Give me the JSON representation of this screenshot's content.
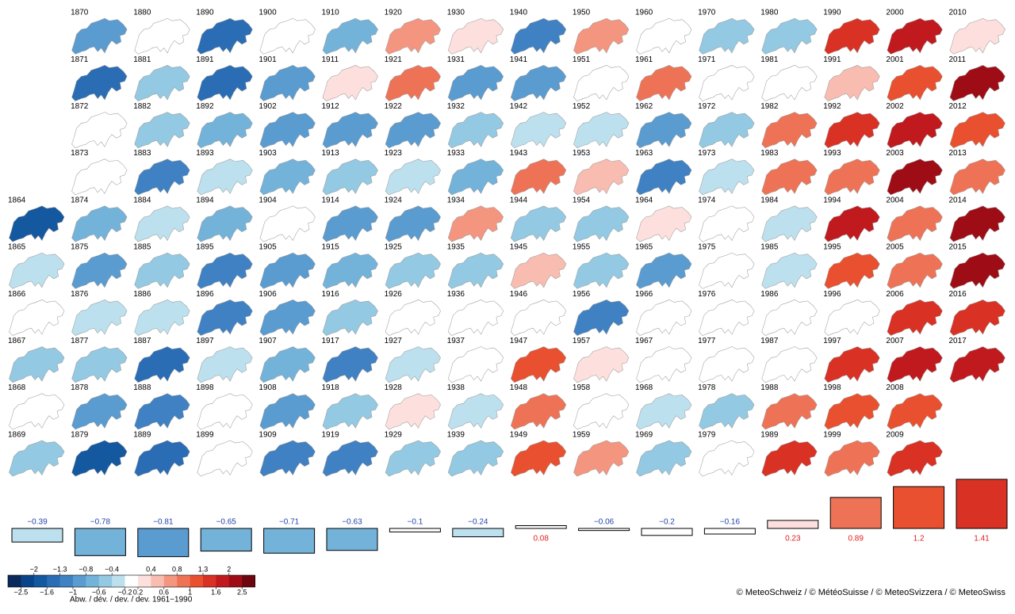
{
  "decades": [
    {
      "years": [
        "1864",
        "1865",
        "1866",
        "1867",
        "1868",
        "1869"
      ],
      "anomalies": [
        -1.8,
        -0.3,
        -0.1,
        -0.6,
        0.1,
        -0.5
      ],
      "mean": -0.39,
      "mean_label": "−0.39"
    },
    {
      "years": [
        "1870",
        "1871",
        "1872",
        "1873",
        "1874",
        "1875",
        "1876",
        "1877",
        "1878",
        "1879"
      ],
      "anomalies": [
        -1.0,
        -1.5,
        -0.1,
        -0.2,
        -0.7,
        -0.9,
        -0.4,
        -0.6,
        -1.0,
        -2.0
      ],
      "mean": -0.78,
      "mean_label": "−0.78"
    },
    {
      "years": [
        "1880",
        "1881",
        "1882",
        "1883",
        "1884",
        "1885",
        "1886",
        "1887",
        "1888",
        "1889"
      ],
      "anomalies": [
        -0.1,
        -0.5,
        -0.6,
        -1.1,
        -0.4,
        -0.6,
        -0.4,
        -1.5,
        -1.3,
        -1.4
      ],
      "mean": -0.81,
      "mean_label": "−0.81"
    },
    {
      "years": [
        "1890",
        "1891",
        "1892",
        "1893",
        "1894",
        "1895",
        "1896",
        "1897",
        "1898",
        "1899"
      ],
      "anomalies": [
        -1.6,
        -1.4,
        -0.8,
        -0.3,
        -0.7,
        -1.1,
        -1.3,
        -0.3,
        0.1,
        -0.1
      ],
      "mean": -0.65,
      "mean_label": "−0.65"
    },
    {
      "years": [
        "1900",
        "1901",
        "1902",
        "1903",
        "1904",
        "1905",
        "1906",
        "1907",
        "1908",
        "1909"
      ],
      "anomalies": [
        -0.1,
        -1.0,
        -1.0,
        -0.8,
        -0.2,
        -1.0,
        -0.9,
        -0.8,
        -0.9,
        -1.2
      ],
      "mean": -0.71,
      "mean_label": "−0.71"
    },
    {
      "years": [
        "1910",
        "1911",
        "1912",
        "1913",
        "1914",
        "1915",
        "1916",
        "1917",
        "1918",
        "1919"
      ],
      "anomalies": [
        -0.8,
        0.2,
        -0.9,
        -0.6,
        -0.9,
        -0.8,
        -0.5,
        -1.3,
        -0.5,
        -1.1
      ],
      "mean": -0.63,
      "mean_label": "−0.63"
    },
    {
      "years": [
        "1920",
        "1921",
        "1922",
        "1923",
        "1924",
        "1925",
        "1926",
        "1927",
        "1928",
        "1929"
      ],
      "anomalies": [
        0.6,
        0.9,
        -1.0,
        -0.3,
        -1.0,
        -0.6,
        -0.1,
        -0.3,
        0.3,
        -0.6
      ],
      "mean": -0.1,
      "mean_label": "−0.1"
    },
    {
      "years": [
        "1930",
        "1931",
        "1932",
        "1933",
        "1934",
        "1935",
        "1936",
        "1937",
        "1938",
        "1939"
      ],
      "anomalies": [
        0.3,
        -0.9,
        -0.6,
        -0.8,
        0.7,
        -0.6,
        -0.1,
        -0.1,
        -0.3,
        -0.6
      ],
      "mean": -0.24,
      "mean_label": "−0.24"
    },
    {
      "years": [
        "1940",
        "1941",
        "1942",
        "1943",
        "1944",
        "1945",
        "1946",
        "1947",
        "1948",
        "1949"
      ],
      "anomalies": [
        -1.2,
        -1.0,
        -0.3,
        0.8,
        -0.6,
        0.4,
        0.1,
        1.2,
        0.9,
        1.0
      ],
      "mean": 0.08
    },
    {
      "years": [
        "1950",
        "1951",
        "1952",
        "1953",
        "1954",
        "1955",
        "1956",
        "1957",
        "1958",
        "1959"
      ],
      "anomalies": [
        0.7,
        0.1,
        -0.3,
        0.4,
        -0.6,
        -0.5,
        -1.3,
        0.3,
        -0.1,
        0.6
      ],
      "mean": -0.06,
      "mean_label": "−0.06"
    },
    {
      "years": [
        "1960",
        "1961",
        "1962",
        "1963",
        "1964",
        "1965",
        "1966",
        "1967",
        "1968",
        "1969"
      ],
      "anomalies": [
        -0.2,
        0.9,
        -1.0,
        -1.1,
        0.3,
        -0.9,
        0.1,
        0.1,
        -0.3,
        -0.5
      ],
      "mean": -0.2,
      "mean_label": "−0.2"
    },
    {
      "years": [
        "1970",
        "1971",
        "1972",
        "1973",
        "1974",
        "1975",
        "1976",
        "1977",
        "1978",
        "1979"
      ],
      "anomalies": [
        -0.5,
        -0.1,
        -0.5,
        -0.3,
        -0.2,
        -0.2,
        -0.1,
        -0.2,
        -0.6,
        -0.2
      ],
      "mean": -0.16,
      "mean_label": "−0.16"
    },
    {
      "years": [
        "1980",
        "1981",
        "1982",
        "1983",
        "1984",
        "1985",
        "1986",
        "1987",
        "1988",
        "1989"
      ],
      "anomalies": [
        -0.6,
        -0.2,
        0.9,
        0.9,
        -0.4,
        -0.4,
        -0.2,
        -0.1,
        0.9,
        1.3
      ],
      "mean": 0.23
    },
    {
      "years": [
        "1990",
        "1991",
        "1992",
        "1993",
        "1994",
        "1995",
        "1996",
        "1997",
        "1998",
        "1999"
      ],
      "anomalies": [
        1.3,
        0.4,
        1.3,
        0.8,
        1.9,
        1.0,
        -0.2,
        1.3,
        1.0,
        0.9
      ],
      "mean": 0.89
    },
    {
      "years": [
        "2000",
        "2001",
        "2002",
        "2003",
        "2004",
        "2005",
        "2006",
        "2007",
        "2008",
        "2009"
      ],
      "anomalies": [
        1.6,
        1.1,
        1.6,
        2.0,
        0.9,
        0.9,
        1.5,
        1.6,
        1.0,
        1.3
      ],
      "mean": 1.2
    },
    {
      "years": [
        "2010",
        "2011",
        "2012",
        "2013",
        "2014",
        "2015",
        "2016",
        "2017"
      ],
      "anomalies": [
        0.3,
        2.1,
        1.2,
        0.9,
        2.1,
        2.1,
        1.3,
        1.6
      ],
      "mean": 1.41
    }
  ],
  "colorbar": {
    "colors": [
      "#0b2a5c",
      "#0a4488",
      "#1458a0",
      "#2a6db5",
      "#3f81c2",
      "#5a9bd0",
      "#73b3da",
      "#93c9e2",
      "#bde0ee",
      "#ffffff",
      "#fde0dd",
      "#f9bcb0",
      "#f4957f",
      "#ee7356",
      "#e8502f",
      "#d93124",
      "#c01a1e",
      "#9e0d16",
      "#6e0610"
    ],
    "top_ticks": [
      {
        "value": -2,
        "label": "−2"
      },
      {
        "value": -1.3,
        "label": "−1.3"
      },
      {
        "value": -0.8,
        "label": "−0.8"
      },
      {
        "value": -0.4,
        "label": "−0.4"
      },
      0.4,
      0.8,
      1.3,
      2
    ],
    "bottom_ticks": [
      {
        "value": -2.5,
        "label": "−2.5"
      },
      {
        "value": -1.6,
        "label": "−1.6"
      },
      {
        "value": -1,
        "label": "−1"
      },
      {
        "value": -0.6,
        "label": "−0.6"
      },
      {
        "value": -0.2,
        "label": "−0.2"
      },
      0.2,
      0.6,
      1,
      1.6,
      2.5
    ],
    "label": "Abw. / dév. / dev. / dev. 1961−1990"
  },
  "credit": "© MeteoSchweiz / © MétéoSuisse / © MeteoSvizzera / © MeteoSwiss"
}
